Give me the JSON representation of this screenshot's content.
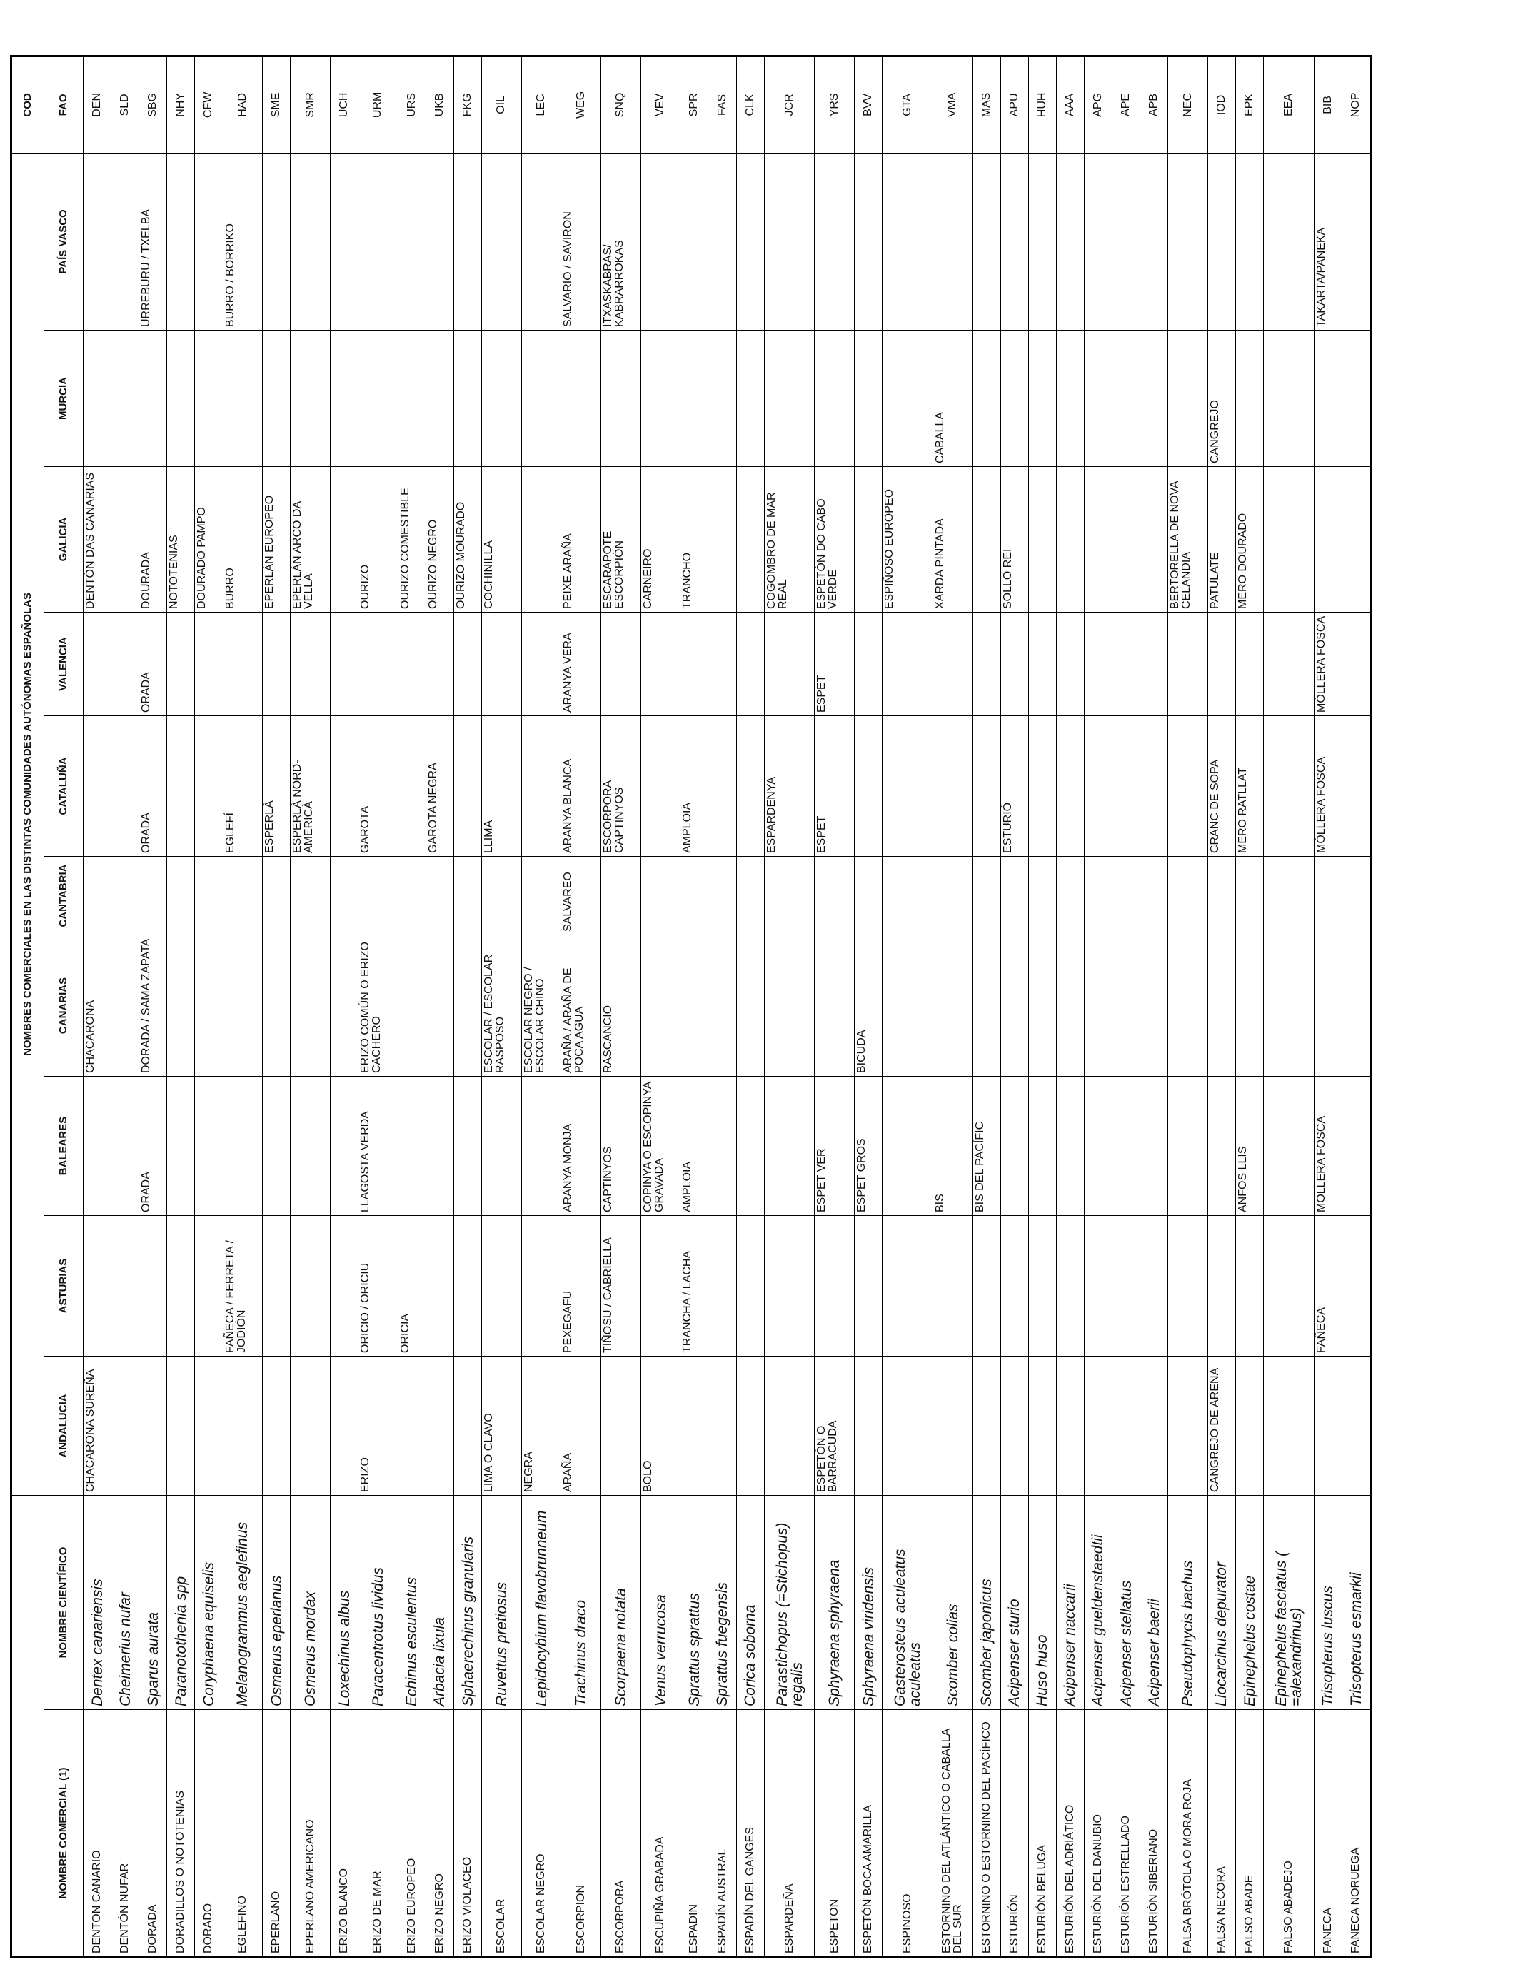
{
  "table": {
    "title": "NOMBRES COMERCIALES EN LAS DISTINTAS COMUNIDADES AUTÓNOMAS ESPAÑOLAS",
    "cod": "COD",
    "columns": [
      "NOMBRE COMERCIAL (1)",
      "NOMBRE CIENTÍFICO",
      "ANDALUCIA",
      "ASTURIAS",
      "BALEARES",
      "CANARIAS",
      "CANTABRIA",
      "CATALUÑA",
      "VALENCIA",
      "GALICIA",
      "MURCIA",
      "PAÍS VASCO",
      "FAO"
    ],
    "rows": [
      [
        "DENTON CANARIO",
        "Dentex canariensis",
        "CHACARONA SUREÑA",
        null,
        null,
        "CHACARONA",
        null,
        null,
        null,
        "DENTÓN DAS CANARIAS",
        null,
        null,
        "DEN"
      ],
      [
        "DENTÓN NUFAR",
        "Cheimerius nufar",
        null,
        null,
        null,
        null,
        null,
        null,
        null,
        null,
        null,
        null,
        "SLD"
      ],
      [
        "DORADA",
        "Sparus aurata",
        null,
        null,
        "ORADA",
        "DORADA / SAMA ZAPATA",
        null,
        "ORADA",
        "ORADA",
        "DOURADA",
        null,
        "URREBURU / TXELBA",
        "SBG"
      ],
      [
        "DORADILLOS O NOTOTENIAS",
        "Paranotothenia spp",
        null,
        null,
        null,
        null,
        null,
        null,
        null,
        "NOTOTENIAS",
        null,
        null,
        "NHY"
      ],
      [
        "DORADO",
        "Coryphaena equiselis",
        null,
        null,
        null,
        null,
        null,
        null,
        null,
        "DOURADO PAMPO",
        null,
        null,
        "CFW"
      ],
      [
        "EGLEFINO",
        "Melanogrammus aeglefinus",
        null,
        "FAÑECA / FERRETA / JODIÓN",
        null,
        null,
        null,
        "EGLEFÍ",
        null,
        "BURRO",
        null,
        "BURRO / BORRIKO",
        "HAD"
      ],
      [
        "EPERLANO",
        "Osmerus eperlanus",
        null,
        null,
        null,
        null,
        null,
        "ESPERLÀ",
        null,
        "EPERLÁN EUROPEO",
        null,
        null,
        "SME"
      ],
      [
        "EPERLANO AMERICANO",
        "Osmerus mordax",
        null,
        null,
        null,
        null,
        null,
        "ESPERLÀ NORD-AMERICÀ",
        null,
        "EPERLÁN ARCO DA VELLA",
        null,
        null,
        "SMR"
      ],
      [
        "ERIZO BLANCO",
        "Loxechinus albus",
        null,
        null,
        null,
        null,
        null,
        null,
        null,
        null,
        null,
        null,
        "UCH"
      ],
      [
        "ERIZO DE MAR",
        "Paracentrotus lividus",
        "ERIZO",
        "ORICIO / ORICIU",
        "LLAGOSTA VERDA",
        "ERIZO COMÚN O ERIZO CACHERO",
        null,
        "GAROTA",
        null,
        "OURIZO",
        null,
        null,
        "URM"
      ],
      [
        "ERIZO EUROPEO",
        "Echinus esculentus",
        null,
        "ORICIA",
        null,
        null,
        null,
        null,
        null,
        "OURIZO COMESTIBLE",
        null,
        null,
        "URS"
      ],
      [
        "ERIZO NEGRO",
        "Arbacia lixula",
        null,
        null,
        null,
        null,
        null,
        "GAROTA NEGRA",
        null,
        "OURIZO NEGRO",
        null,
        null,
        "UKB"
      ],
      [
        "ERIZO VIOLACEO",
        "Sphaerechinus granularis",
        null,
        null,
        null,
        null,
        null,
        null,
        null,
        "OURIZO MOURADO",
        null,
        null,
        "FKG"
      ],
      [
        "ESCOLAR",
        "Ruvettus pretiosus",
        "LIMA O CLAVO",
        null,
        null,
        "ESCOLAR / ESCOLAR RASPOSO",
        null,
        "LLIMA",
        null,
        "COCHINILLA",
        null,
        null,
        "OIL"
      ],
      [
        "ESCOLAR NEGRO",
        "Lepidocybium flavobrunneum",
        "NEGRA",
        null,
        null,
        "ESCOLAR NEGRO / ESCOLAR CHINO",
        null,
        null,
        null,
        null,
        null,
        null,
        "LEC"
      ],
      [
        "ESCORPION",
        "Trachinus draco",
        "ARAÑA",
        "PEXEGAFU",
        "ARANYA MONJA",
        "ARAÑA / ARAÑA DE POCA AGUA",
        "SALVAREO",
        "ARANYA BLANCA",
        "ARANYA VERA",
        "PEIXE ARAÑA",
        null,
        "SALVARIO / SAVIRON",
        "WEG"
      ],
      [
        "ESCORPORA",
        "Scorpaena notata",
        null,
        "TIÑOSU / CABRIELLA",
        "CAPTINYOS",
        "RASCANCIO",
        null,
        "ESCORPORA CAPTINYOS",
        null,
        "ESCARAPOTE ESCORPIÓN",
        null,
        "ITXASKABRAS/ KABRARROKAS",
        "SNQ"
      ],
      [
        "ESCUPIÑA GRABADA",
        "Venus verrucosa",
        "BOLO",
        null,
        "COPINYA O ESCOPINYA GRAVADA",
        null,
        null,
        null,
        null,
        "CARNEIRO",
        null,
        null,
        "VEV"
      ],
      [
        "ESPADIN",
        "Sprattus sprattus",
        null,
        "TRANCHA / LACHA",
        "AMPLOIA",
        null,
        null,
        "AMPLOIA",
        null,
        "TRANCHO",
        null,
        null,
        "SPR"
      ],
      [
        "ESPADÍN AUSTRAL",
        "Sprattus fuegensis",
        null,
        null,
        null,
        null,
        null,
        null,
        null,
        null,
        null,
        null,
        "FAS"
      ],
      [
        "ESPADÍN DEL GANGES",
        "Corica soborna",
        null,
        null,
        null,
        null,
        null,
        null,
        null,
        null,
        null,
        null,
        "CLK"
      ],
      [
        "ESPARDEÑA",
        "Parastichopus (=Stichopus) regalis",
        null,
        null,
        null,
        null,
        null,
        "ESPARDENYA",
        null,
        "COGOMBRO DE MAR REAL",
        null,
        null,
        "JCR"
      ],
      [
        "ESPETON",
        "Sphyraena sphyraena",
        "ESPETÓN O BARRACUDA",
        null,
        "ESPET VER",
        null,
        null,
        "ESPET",
        "ESPET",
        "ESPETÓN DO CABO VERDE",
        null,
        null,
        "YRS"
      ],
      [
        "ESPETÓN BOCA AMARILLA",
        "Sphyraena viridensis",
        null,
        null,
        "ESPET GROS",
        "BICUDA",
        null,
        null,
        null,
        null,
        null,
        null,
        "BVV"
      ],
      [
        "ESPINOSO",
        "Gasterosteus aculeatus aculeatus",
        null,
        null,
        null,
        null,
        null,
        null,
        null,
        "ESPIÑOSO EUROPEO",
        null,
        null,
        "GTA"
      ],
      [
        "ESTORNINO DEL ATLÁNTICO O CABALLA DEL SUR",
        "Scomber colias",
        null,
        null,
        "BIS",
        null,
        null,
        null,
        null,
        "XARDA PINTADA",
        "CABALLA",
        null,
        "VMA"
      ],
      [
        "ESTORNINO O ESTORNINO DEL PACÍFICO",
        "Scomber japonicus",
        null,
        null,
        "BIS DEL PACÍFIC",
        null,
        null,
        null,
        null,
        null,
        null,
        null,
        "MAS"
      ],
      [
        "ESTURIÓN",
        "Acipenser sturio",
        null,
        null,
        null,
        null,
        null,
        "ESTURIÓ",
        null,
        "SOLLO REI",
        null,
        null,
        "APU"
      ],
      [
        "ESTURIÓN BELUGA",
        "Huso huso",
        null,
        null,
        null,
        null,
        null,
        null,
        null,
        null,
        null,
        null,
        "HUH"
      ],
      [
        "ESTURIÓN DEL ADRIÁTICO",
        "Acipenser naccarii",
        null,
        null,
        null,
        null,
        null,
        null,
        null,
        null,
        null,
        null,
        "AAA"
      ],
      [
        "ESTURIÓN DEL DANUBIO",
        "Acipenser gueldenstaedtii",
        null,
        null,
        null,
        null,
        null,
        null,
        null,
        null,
        null,
        null,
        "APG"
      ],
      [
        "ESTURIÓN ESTRELLADO",
        "Acipenser stellatus",
        null,
        null,
        null,
        null,
        null,
        null,
        null,
        null,
        null,
        null,
        "APE"
      ],
      [
        "ESTURIÓN SIBERIANO",
        "Acipenser baerii",
        null,
        null,
        null,
        null,
        null,
        null,
        null,
        null,
        null,
        null,
        "APB"
      ],
      [
        "FALSA BRÓTOLA O MORA ROJA",
        "Pseudophycis bachus",
        null,
        null,
        null,
        null,
        null,
        null,
        null,
        "BERTORELLA DE NOVA CELANDIA",
        null,
        null,
        "NEC"
      ],
      [
        "FALSA NECORA",
        "Liocarcinus depurator",
        "CANGREJO DE ARENA",
        null,
        null,
        null,
        null,
        "CRANC DE SOPA",
        null,
        "PATULATE",
        "CANGREJO",
        null,
        "IOD"
      ],
      [
        "FALSO ABADE",
        "Epinephelus costae",
        null,
        null,
        "ANFOS LLIS",
        null,
        null,
        "MERO RATLLAT",
        null,
        "MERO DOURADO",
        null,
        null,
        "EPK"
      ],
      [
        "FALSO ABADEJO",
        "Epinephelus fasciatus ( =alexandrinus)",
        null,
        null,
        null,
        null,
        null,
        null,
        null,
        null,
        null,
        null,
        "EEA"
      ],
      [
        "FANECA",
        "Trisopterus luscus",
        null,
        "FAÑECA",
        "MOLLERA FOSCA",
        null,
        null,
        "MÒLLERA FOSCA",
        "MÒLLERA FOSCA",
        null,
        null,
        "TAKARTA/PANEKA",
        "BIB"
      ],
      [
        "FANECA NORUEGA",
        "Trisopterus esmarkii",
        null,
        null,
        null,
        null,
        null,
        null,
        null,
        null,
        null,
        null,
        "NOP"
      ]
    ]
  }
}
